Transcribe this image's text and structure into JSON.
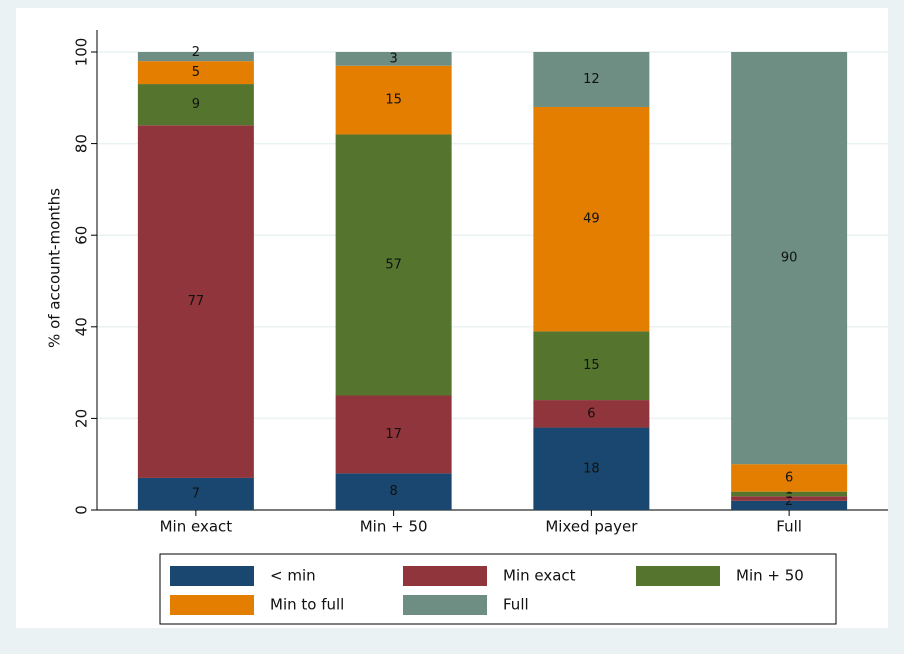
{
  "chart_data": {
    "type": "stacked-bar",
    "y_label": "% of account-months",
    "categories": [
      "Min exact",
      "Min + 50",
      "Mixed payer",
      "Full"
    ],
    "series": [
      {
        "name": "< min",
        "color": "#1a476f",
        "values": [
          7,
          8,
          18,
          2
        ]
      },
      {
        "name": "Min exact",
        "color": "#90353b",
        "values": [
          77,
          17,
          6,
          1
        ]
      },
      {
        "name": "Min + 50",
        "color": "#55752f",
        "values": [
          9,
          57,
          15,
          1
        ]
      },
      {
        "name": "Min to full",
        "color": "#e37e00",
        "values": [
          5,
          15,
          49,
          6
        ]
      },
      {
        "name": "Full",
        "color": "#6e8e84",
        "values": [
          2,
          3,
          12,
          90
        ]
      }
    ],
    "ylim": [
      0,
      100
    ],
    "yticks": [
      0,
      20,
      40,
      60,
      80,
      100
    ],
    "grid": true
  }
}
